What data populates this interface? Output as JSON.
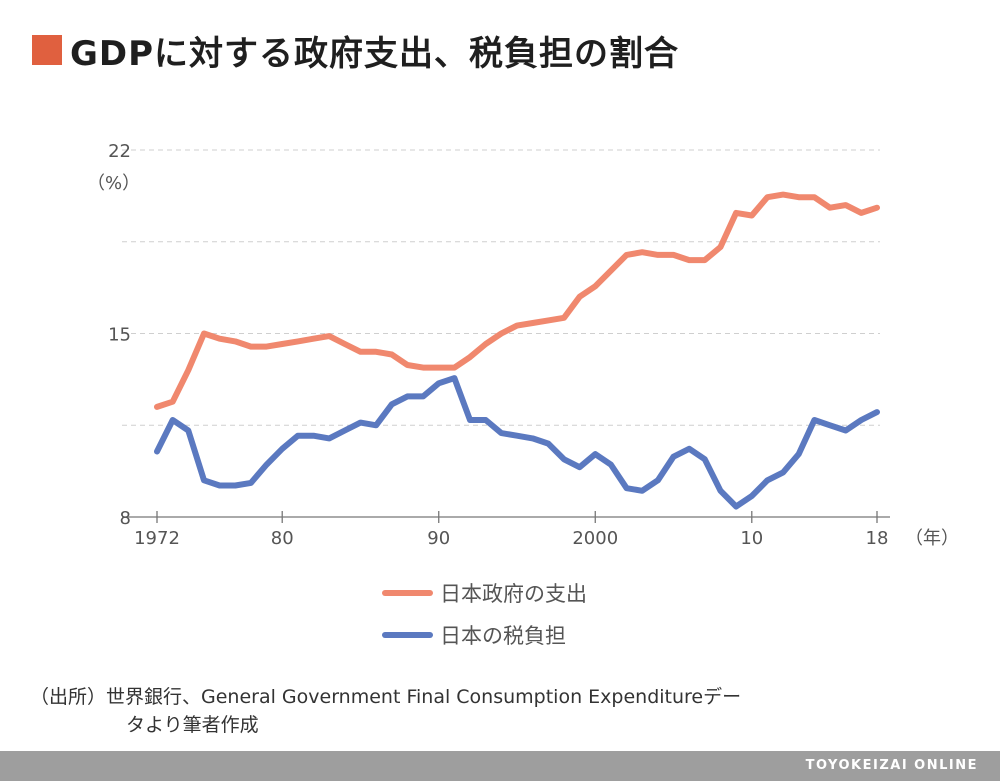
{
  "header": {
    "title": "GDPに対する政府支出、税負担の割合",
    "accent_color": "#e0603f"
  },
  "chart_data": {
    "type": "line",
    "title": "GDPに対する政府支出、税負担の割合",
    "ylabel": "（%）",
    "xlabel": "（年）",
    "ylim": [
      8,
      22
    ],
    "xlim": [
      1972,
      2018
    ],
    "yticks": [
      8,
      15,
      22
    ],
    "minor_gridlines": [
      11.5,
      18.5
    ],
    "xticks": [
      {
        "value": 1972,
        "label": "1972"
      },
      {
        "value": 1980,
        "label": "80"
      },
      {
        "value": 1990,
        "label": "90"
      },
      {
        "value": 2000,
        "label": "2000"
      },
      {
        "value": 2010,
        "label": "10"
      },
      {
        "value": 2018,
        "label": "18"
      }
    ],
    "grid": "horizontal dashed",
    "legend_position": "bottom-center",
    "x": [
      1972,
      1973,
      1974,
      1975,
      1976,
      1977,
      1978,
      1979,
      1980,
      1981,
      1982,
      1983,
      1984,
      1985,
      1986,
      1987,
      1988,
      1989,
      1990,
      1991,
      1992,
      1993,
      1994,
      1995,
      1996,
      1997,
      1998,
      1999,
      2000,
      2001,
      2002,
      2003,
      2004,
      2005,
      2006,
      2007,
      2008,
      2009,
      2010,
      2011,
      2012,
      2013,
      2014,
      2015,
      2016,
      2017,
      2018
    ],
    "series": [
      {
        "name": "日本政府の支出",
        "color": "#f0886e",
        "values": [
          12.2,
          12.4,
          13.6,
          15.0,
          14.8,
          14.7,
          14.5,
          14.5,
          14.6,
          14.7,
          14.8,
          14.9,
          14.6,
          14.3,
          14.3,
          14.2,
          13.8,
          13.7,
          13.7,
          13.7,
          14.1,
          14.6,
          15.0,
          15.3,
          15.4,
          15.5,
          15.6,
          16.4,
          16.8,
          17.4,
          18.0,
          18.1,
          18.0,
          18.0,
          17.8,
          17.8,
          18.3,
          19.6,
          19.5,
          20.2,
          20.3,
          20.2,
          20.2,
          19.8,
          19.9,
          19.6,
          19.8
        ]
      },
      {
        "name": "日本の税負担",
        "color": "#5b79c0",
        "values": [
          10.5,
          11.7,
          11.3,
          9.4,
          9.2,
          9.2,
          9.3,
          10.0,
          10.6,
          11.1,
          11.1,
          11.0,
          11.3,
          11.6,
          11.5,
          12.3,
          12.6,
          12.6,
          13.1,
          13.3,
          11.7,
          11.7,
          11.2,
          11.1,
          11.0,
          10.8,
          10.2,
          9.9,
          10.4,
          10.0,
          9.1,
          9.0,
          9.4,
          10.3,
          10.6,
          10.2,
          9.0,
          8.4,
          8.8,
          9.4,
          9.7,
          10.4,
          11.7,
          11.5,
          11.3,
          11.7,
          12.0
        ]
      }
    ]
  },
  "source": {
    "line1": "（出所）世界銀行、General Government Final Consumption Expenditureデー",
    "line2": "タより筆者作成"
  },
  "footer": {
    "brand": "TOYOKEIZAI ONLINE"
  }
}
